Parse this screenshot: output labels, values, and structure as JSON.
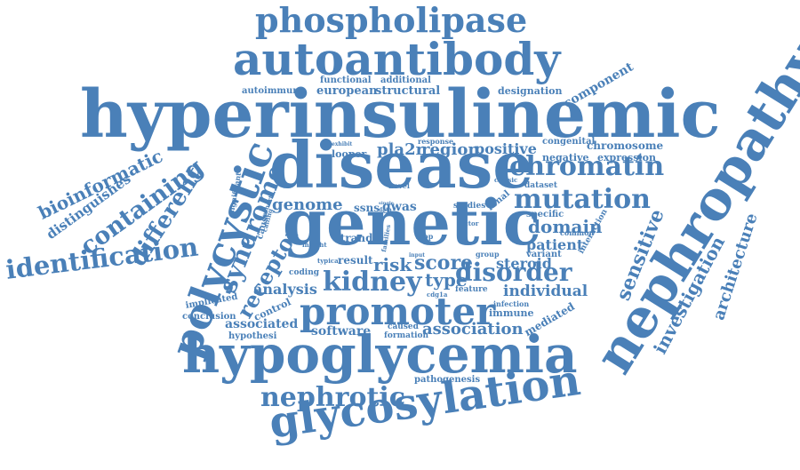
{
  "colors": {
    "word": "#4a80b8",
    "background": "#ffffff"
  },
  "words": {
    "phospholipase": "phospholipase",
    "autoantibody": "autoantibody",
    "hyperinsulinemic": "hyperinsulinemic",
    "disease": "disease",
    "genetic": "genetic",
    "nephropathy": "nephropathy",
    "promoter": "promoter",
    "hypoglycemia": "hypoglycemia",
    "glycosylation": "glycosylation",
    "nephrotic": "nephrotic",
    "polycystic": "polycystic",
    "syndrome": "syndrome",
    "chromatin": "chromatin",
    "mutation": "mutation",
    "kidney": "kidney",
    "disorder": "disorder",
    "identification": "identification",
    "containing": "containing",
    "different": "different",
    "bioinformatic": "bioinformatic",
    "distinguishes": "distinguishes",
    "receptor": "receptor",
    "investigation": "investigation",
    "architecture": "architecture",
    "sensitive": "sensitive",
    "score": "score",
    "risk": "risk",
    "type": "type",
    "domain": "domain",
    "patient": "patient",
    "individual": "individual",
    "association": "association",
    "software": "software",
    "analysis": "analysis",
    "associated": "associated",
    "steroid": "steroid",
    "genome": "genome",
    "pla2r": "pla2r",
    "region": "region",
    "positive": "positive",
    "gwas": "gwas",
    "ssns": "ssns",
    "component": "component",
    "designation": "designation",
    "european": "european",
    "structural": "structural",
    "autoimmune": "autoimmune",
    "functional": "functional",
    "additional": "additional",
    "chromosome": "chromosome",
    "congenital": "congenital",
    "negative": "negative",
    "expression": "expression",
    "looper": "looper",
    "response": "response",
    "dataset": "dataset",
    "specific": "specific",
    "renal": "renal",
    "classic": "classic",
    "novel": "novel",
    "studies": "studies",
    "strand": "strand",
    "result": "result",
    "coding": "coding",
    "group": "group",
    "variant": "variant",
    "interaction": "interaction",
    "common": "common",
    "feature": "feature",
    "infection": "infection",
    "immune": "immune",
    "mediated": "mediated",
    "caused": "caused",
    "formation": "formation",
    "pathogenesis": "pathogenesis",
    "hypothesi": "hypothesi",
    "conclusion": "conclusion",
    "implicated": "implicated",
    "control": "control",
    "significant": "significant",
    "cause": "cause",
    "cohort": "cohort",
    "calling": "calling",
    "insight": "insight",
    "typical": "typical",
    "families": "families",
    "loop": "loop",
    "factor": "factor",
    "input": "input",
    "cdg1a": "cdg1a",
    "exhibit": "exhibit",
    "data": "data",
    "single": "single"
  }
}
